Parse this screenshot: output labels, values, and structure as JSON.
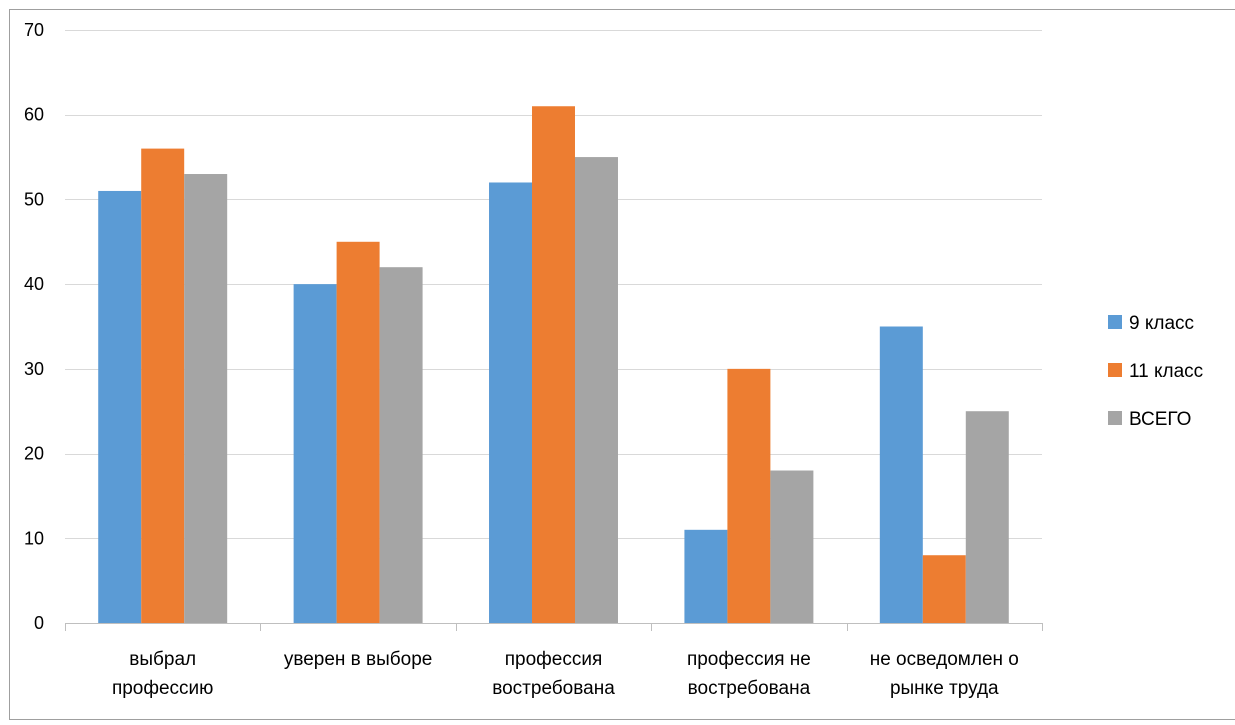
{
  "chart_data": {
    "type": "bar",
    "title": "",
    "xlabel": "",
    "ylabel": "",
    "ylim": [
      0,
      70
    ],
    "yticks": [
      0,
      10,
      20,
      30,
      40,
      50,
      60,
      70
    ],
    "grid": true,
    "legend_position": "right",
    "categories": [
      [
        "выбрал",
        "профессию"
      ],
      [
        "уверен в выборе"
      ],
      [
        "профессия",
        "востребована"
      ],
      [
        "профессия не",
        "востребована"
      ],
      [
        "не осведомлен о",
        "рынке труда"
      ]
    ],
    "series": [
      {
        "name": "9 класс",
        "color": "#5b9bd5",
        "values": [
          51,
          40,
          52,
          11,
          35
        ]
      },
      {
        "name": "11 класс",
        "color": "#ed7d31",
        "values": [
          56,
          45,
          61,
          30,
          8
        ]
      },
      {
        "name": "ВСЕГО",
        "color": "#a5a5a5",
        "values": [
          53,
          42,
          55,
          18,
          25
        ]
      }
    ]
  }
}
